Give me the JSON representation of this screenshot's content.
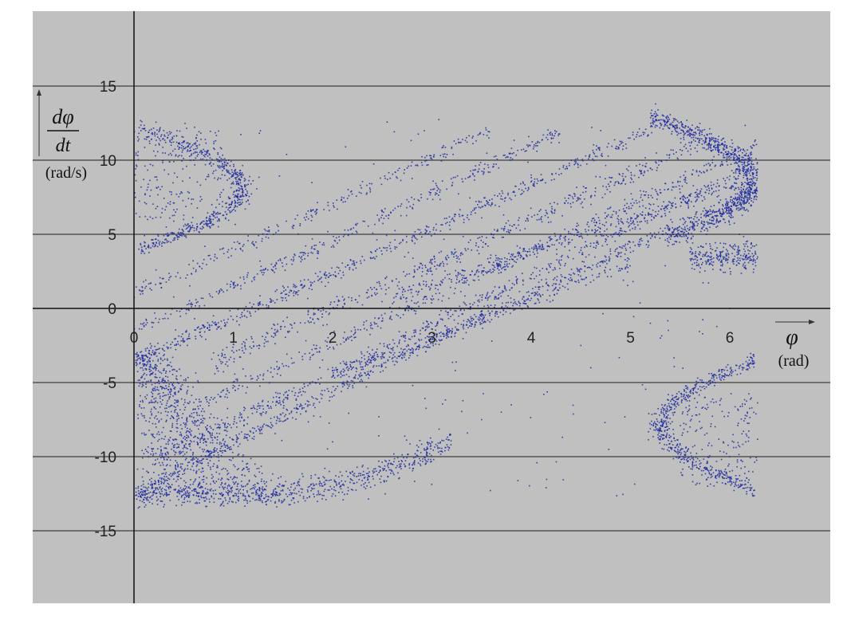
{
  "chart_data": {
    "type": "scatter",
    "title": "",
    "xlabel": {
      "symbol": "φ",
      "unit": "(rad)"
    },
    "ylabel": {
      "numerator": "dφ",
      "denominator": "dt",
      "unit": "(rad/s)"
    },
    "xlim": [
      0,
      7
    ],
    "ylim": [
      -19,
      19
    ],
    "x_ticks": [
      0,
      1,
      2,
      3,
      4,
      5,
      6
    ],
    "y_ticks": [
      -15,
      -10,
      -5,
      0,
      5,
      10,
      15
    ],
    "grid": "horizontal",
    "legend": "none",
    "colors": {
      "plot_background": "#c0c0c0",
      "gridline": "#6e6e6e",
      "marker": "#1f2a9e",
      "axis": "#111111"
    },
    "series": [
      {
        "marker": "dot",
        "approx_points": 6000,
        "structure": "Poincaré-section-like strange attractor: interleaved diagonal bands running from about (0, -12) up to about (6.2, 10), wrapping in φ from 0 to 2π",
        "sample_points": [
          {
            "x": 0.02,
            "y": -3.5
          },
          {
            "x": 0.1,
            "y": -9.8
          },
          {
            "x": 0.3,
            "y": -11.5
          },
          {
            "x": 0.8,
            "y": -12.5
          },
          {
            "x": 1.5,
            "y": -12.3
          },
          {
            "x": 2.2,
            "y": -11.0
          },
          {
            "x": 3.0,
            "y": -9.0
          },
          {
            "x": 3.8,
            "y": -6.5
          },
          {
            "x": 4.6,
            "y": -4.0
          },
          {
            "x": 5.3,
            "y": -2.0
          },
          {
            "x": 6.0,
            "y": 0.0
          },
          {
            "x": 0.05,
            "y": 4.0
          },
          {
            "x": 0.5,
            "y": 6.0
          },
          {
            "x": 0.9,
            "y": 8.0
          },
          {
            "x": 1.1,
            "y": 9.0
          },
          {
            "x": 0.6,
            "y": 10.0
          },
          {
            "x": 0.8,
            "y": -0.5
          },
          {
            "x": 1.5,
            "y": 1.5
          },
          {
            "x": 2.3,
            "y": 3.5
          },
          {
            "x": 3.2,
            "y": 6.0
          },
          {
            "x": 4.0,
            "y": 9.0
          },
          {
            "x": 4.7,
            "y": 12.0
          },
          {
            "x": 5.3,
            "y": 12.5
          },
          {
            "x": 5.9,
            "y": 11.0
          },
          {
            "x": 6.2,
            "y": 8.5
          },
          {
            "x": 6.1,
            "y": 5.0
          },
          {
            "x": 5.8,
            "y": 3.0
          },
          {
            "x": 6.3,
            "y": 4.0
          },
          {
            "x": 1.3,
            "y": -7.0
          },
          {
            "x": 2.0,
            "y": -4.0
          },
          {
            "x": 3.0,
            "y": -1.0
          },
          {
            "x": 4.0,
            "y": 2.0
          },
          {
            "x": 4.9,
            "y": 5.0
          },
          {
            "x": 5.5,
            "y": 6.0
          },
          {
            "x": 4.5,
            "y": -2.5
          },
          {
            "x": 5.2,
            "y": -1.0
          },
          {
            "x": 5.6,
            "y": -8.0
          },
          {
            "x": 5.9,
            "y": -6.5
          },
          {
            "x": 6.2,
            "y": -4.0
          },
          {
            "x": 6.0,
            "y": -11.0
          },
          {
            "x": 6.3,
            "y": -12.5
          },
          {
            "x": 2.0,
            "y": -9.0
          },
          {
            "x": 3.5,
            "y": -7.5
          },
          {
            "x": 0.3,
            "y": 12.0
          }
        ]
      }
    ]
  }
}
